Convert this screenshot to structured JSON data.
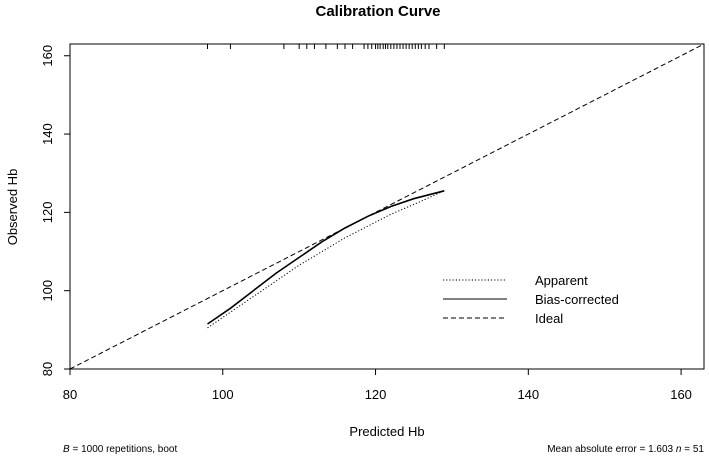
{
  "chart_data": {
    "type": "line",
    "title": "Calibration Curve",
    "xlabel": "Predicted Hb",
    "ylabel": "Observed Hb",
    "xlim": [
      80,
      163
    ],
    "ylim": [
      80,
      163
    ],
    "xticks": [
      "80",
      "100",
      "120",
      "140",
      "160"
    ],
    "yticks": [
      "80",
      "100",
      "120",
      "140",
      "160"
    ],
    "series": [
      {
        "name": "Apparent",
        "style": "dotted",
        "x": [
          98,
          101,
          104,
          107,
          110,
          113,
          116,
          119,
          122,
          125,
          129
        ],
        "y": [
          90.5,
          94.5,
          98.5,
          102.5,
          106.5,
          110,
          113.5,
          116.5,
          119.5,
          122,
          125.5
        ]
      },
      {
        "name": "Bias-corrected",
        "style": "solid",
        "x": [
          98,
          101,
          104,
          107,
          110,
          113,
          116,
          119,
          122,
          125,
          129
        ],
        "y": [
          91.5,
          95.5,
          100,
          104.5,
          108.5,
          112.5,
          116,
          119,
          121.5,
          123.5,
          125.5
        ]
      },
      {
        "name": "Ideal",
        "style": "dashed",
        "x": [
          80,
          163
        ],
        "y": [
          80,
          163
        ]
      }
    ],
    "rug": [
      98,
      101,
      108,
      110,
      111,
      112,
      113.5,
      115,
      116,
      117,
      118.5,
      119,
      119.5,
      120,
      120.3,
      120.6,
      121,
      121.3,
      121.6,
      122,
      122.4,
      122.8,
      123.2,
      123.6,
      124,
      124.4,
      124.8,
      125.2,
      125.6,
      126,
      126.5,
      127,
      128,
      129
    ],
    "legend": [
      "Apparent",
      "Bias-corrected",
      "Ideal"
    ],
    "legend_position": "bottom-right",
    "footnote_left": {
      "italic": "B",
      "text": " = 1000 repetitions, boot"
    },
    "footnote_right": {
      "text": "Mean absolute error = 1.603 ",
      "italic": "n",
      "tail": " = 51"
    }
  }
}
